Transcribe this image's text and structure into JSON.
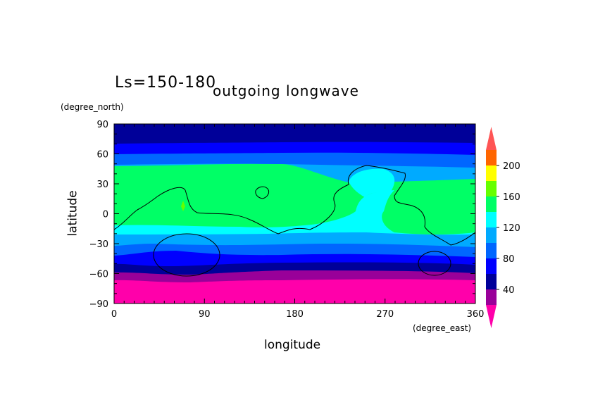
{
  "header": {
    "period": "Ls=150-180",
    "title": "outgoing longwave"
  },
  "axes": {
    "x_unit": "(degree_east)",
    "y_unit": "(degree_north)",
    "xlabel": "longitude",
    "ylabel": "latitude"
  },
  "chart_data": {
    "type": "heatmap",
    "title": "outgoing longwave",
    "subtitle": "Ls=150-180",
    "xlabel": "longitude",
    "ylabel": "latitude",
    "x_unit": "(degree_east)",
    "y_unit": "(degree_north)",
    "xlim": [
      0,
      360
    ],
    "ylim": [
      -90,
      90
    ],
    "x_ticks": [
      0,
      90,
      180,
      270,
      360
    ],
    "y_ticks": [
      90,
      60,
      30,
      0,
      -30,
      -60,
      -90
    ],
    "colorbar": {
      "tick_labels": [
        "40",
        "80",
        "120",
        "160",
        "200"
      ],
      "levels": [
        20,
        40,
        60,
        80,
        100,
        120,
        140,
        160,
        180,
        200,
        220
      ],
      "colors": [
        "#990099",
        "#000099",
        "#0000ff",
        "#0066ff",
        "#00aaff",
        "#00ffff",
        "#00ff66",
        "#66ff00",
        "#ffff00",
        "#ff6600",
        "#ff5555"
      ],
      "under_color": "#ff00aa",
      "over_color": "#ff5555"
    },
    "zonal_bands_approx": [
      {
        "lat_from": 90,
        "lat_to": 78,
        "value": 50
      },
      {
        "lat_from": 78,
        "lat_to": 67,
        "value": 70
      },
      {
        "lat_from": 67,
        "lat_to": 57,
        "value": 90
      },
      {
        "lat_from": 57,
        "lat_to": 48,
        "value": 110
      },
      {
        "lat_from": 48,
        "lat_to": 33,
        "value": 130
      },
      {
        "lat_from": 33,
        "lat_to": -18,
        "value": 150
      },
      {
        "lat_from": -18,
        "lat_to": -32,
        "value": 130
      },
      {
        "lat_from": -32,
        "lat_to": -40,
        "value": 110
      },
      {
        "lat_from": -40,
        "lat_to": -47,
        "value": 90
      },
      {
        "lat_from": -47,
        "lat_to": -55,
        "value": 70
      },
      {
        "lat_from": -55,
        "lat_to": -60,
        "value": 50
      },
      {
        "lat_from": -60,
        "lat_to": -65,
        "value": 30
      },
      {
        "lat_from": -65,
        "lat_to": -90,
        "value": 10
      }
    ]
  }
}
